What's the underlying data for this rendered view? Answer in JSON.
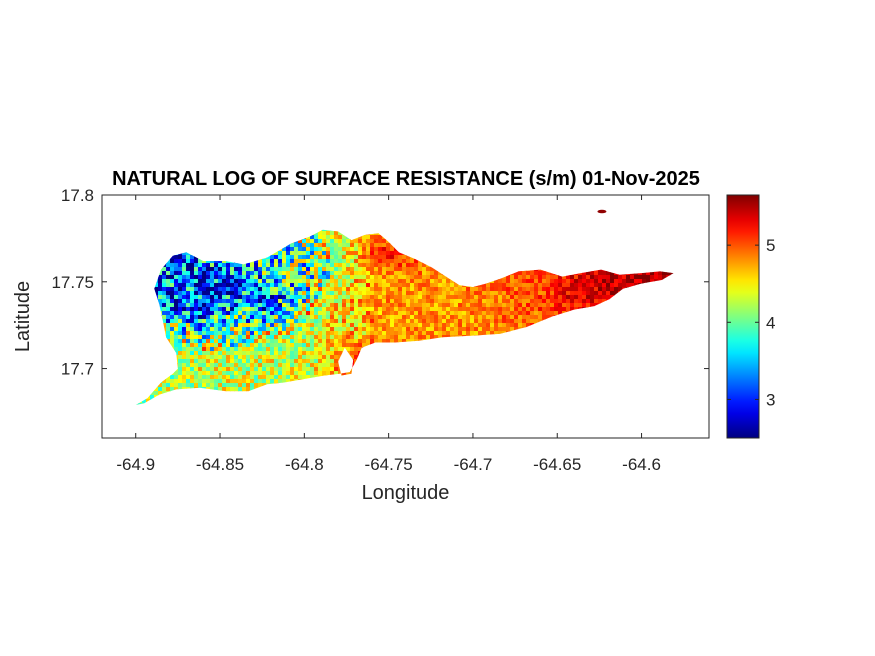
{
  "chart_data": {
    "type": "heatmap",
    "title": "NATURAL LOG OF SURFACE RESISTANCE (s/m) 01-Nov-2025",
    "xlabel": "Longitude",
    "ylabel": "Latitude",
    "xlim": [
      -64.92,
      -64.56
    ],
    "ylim": [
      17.66,
      17.8
    ],
    "xticks": [
      -64.9,
      -64.85,
      -64.8,
      -64.75,
      -64.7,
      -64.65,
      -64.6
    ],
    "xtick_labels": [
      "-64.9",
      "-64.85",
      "-64.8",
      "-64.75",
      "-64.7",
      "-64.65",
      "-64.6"
    ],
    "yticks": [
      17.7,
      17.75,
      17.8
    ],
    "ytick_labels": [
      "17.7",
      "17.75",
      "17.8"
    ],
    "colormap": "jet",
    "clim": [
      2.5,
      5.65
    ],
    "colorbar_ticks": [
      3,
      4,
      5
    ],
    "colorbar_tick_labels": [
      "3",
      "4",
      "5"
    ],
    "region_outline": [
      [
        -64.9,
        17.679
      ],
      [
        -64.893,
        17.683
      ],
      [
        -64.885,
        17.692
      ],
      [
        -64.878,
        17.697
      ],
      [
        -64.875,
        17.7
      ],
      [
        -64.876,
        17.709
      ],
      [
        -64.882,
        17.718
      ],
      [
        -64.884,
        17.728
      ],
      [
        -64.886,
        17.737
      ],
      [
        -64.889,
        17.746
      ],
      [
        -64.885,
        17.757
      ],
      [
        -64.878,
        17.765
      ],
      [
        -64.87,
        17.767
      ],
      [
        -64.86,
        17.762
      ],
      [
        -64.847,
        17.762
      ],
      [
        -64.836,
        17.76
      ],
      [
        -64.822,
        17.764
      ],
      [
        -64.808,
        17.772
      ],
      [
        -64.797,
        17.776
      ],
      [
        -64.789,
        17.78
      ],
      [
        -64.78,
        17.779
      ],
      [
        -64.772,
        17.774
      ],
      [
        -64.764,
        17.777
      ],
      [
        -64.756,
        17.778
      ],
      [
        -64.75,
        17.773
      ],
      [
        -64.744,
        17.767
      ],
      [
        -64.734,
        17.763
      ],
      [
        -64.724,
        17.758
      ],
      [
        -64.716,
        17.753
      ],
      [
        -64.708,
        17.748
      ],
      [
        -64.7,
        17.747
      ],
      [
        -64.692,
        17.749
      ],
      [
        -64.683,
        17.752
      ],
      [
        -64.673,
        17.756
      ],
      [
        -64.66,
        17.757
      ],
      [
        -64.647,
        17.753
      ],
      [
        -64.636,
        17.755
      ],
      [
        -64.624,
        17.757
      ],
      [
        -64.613,
        17.754
      ],
      [
        -64.6,
        17.755
      ],
      [
        -64.589,
        17.756
      ],
      [
        -64.581,
        17.755
      ],
      [
        -64.588,
        17.751
      ],
      [
        -64.6,
        17.749
      ],
      [
        -64.611,
        17.746
      ],
      [
        -64.619,
        17.74
      ],
      [
        -64.628,
        17.736
      ],
      [
        -64.64,
        17.734
      ],
      [
        -64.653,
        17.73
      ],
      [
        -64.668,
        17.724
      ],
      [
        -64.684,
        17.72
      ],
      [
        -64.7,
        17.719
      ],
      [
        -64.718,
        17.718
      ],
      [
        -64.732,
        17.716
      ],
      [
        -64.746,
        17.715
      ],
      [
        -64.758,
        17.715
      ],
      [
        -64.766,
        17.712
      ],
      [
        -64.769,
        17.705
      ],
      [
        -64.773,
        17.698
      ],
      [
        -64.779,
        17.697
      ],
      [
        -64.788,
        17.696
      ],
      [
        -64.8,
        17.694
      ],
      [
        -64.812,
        17.692
      ],
      [
        -64.822,
        17.691
      ],
      [
        -64.833,
        17.687
      ],
      [
        -64.847,
        17.687
      ],
      [
        -64.862,
        17.689
      ],
      [
        -64.876,
        17.688
      ],
      [
        -64.886,
        17.685
      ],
      [
        -64.895,
        17.68
      ]
    ],
    "inlet": [
      [
        -64.776,
        17.712
      ],
      [
        -64.771,
        17.705
      ],
      [
        -64.772,
        17.697
      ],
      [
        -64.778,
        17.696
      ],
      [
        -64.78,
        17.704
      ]
    ],
    "value_anchors": [
      {
        "lon": -64.865,
        "lat": 17.74,
        "value": 2.8
      },
      {
        "lon": -64.845,
        "lat": 17.747,
        "value": 2.9
      },
      {
        "lon": -64.82,
        "lat": 17.74,
        "value": 3.1
      },
      {
        "lon": -64.875,
        "lat": 17.755,
        "value": 3.0
      },
      {
        "lon": -64.88,
        "lat": 17.71,
        "value": 4.3
      },
      {
        "lon": -64.855,
        "lat": 17.7,
        "value": 4.4
      },
      {
        "lon": -64.83,
        "lat": 17.705,
        "value": 4.4
      },
      {
        "lon": -64.8,
        "lat": 17.71,
        "value": 4.3
      },
      {
        "lon": -64.8,
        "lat": 17.76,
        "value": 3.9
      },
      {
        "lon": -64.78,
        "lat": 17.73,
        "value": 4.6
      },
      {
        "lon": -64.755,
        "lat": 17.74,
        "value": 4.9
      },
      {
        "lon": -64.75,
        "lat": 17.765,
        "value": 5.3
      },
      {
        "lon": -64.76,
        "lat": 17.705,
        "value": 5.5
      },
      {
        "lon": -64.72,
        "lat": 17.735,
        "value": 4.8
      },
      {
        "lon": -64.7,
        "lat": 17.725,
        "value": 4.8
      },
      {
        "lon": -64.68,
        "lat": 17.735,
        "value": 4.9
      },
      {
        "lon": -64.66,
        "lat": 17.745,
        "value": 5.0
      },
      {
        "lon": -64.64,
        "lat": 17.745,
        "value": 5.4
      },
      {
        "lon": -64.62,
        "lat": 17.75,
        "value": 5.5
      },
      {
        "lon": -64.595,
        "lat": 17.752,
        "value": 5.6
      }
    ],
    "islets": [
      {
        "lon": -64.6235,
        "lat": 17.7905,
        "value": 5.6
      }
    ]
  }
}
